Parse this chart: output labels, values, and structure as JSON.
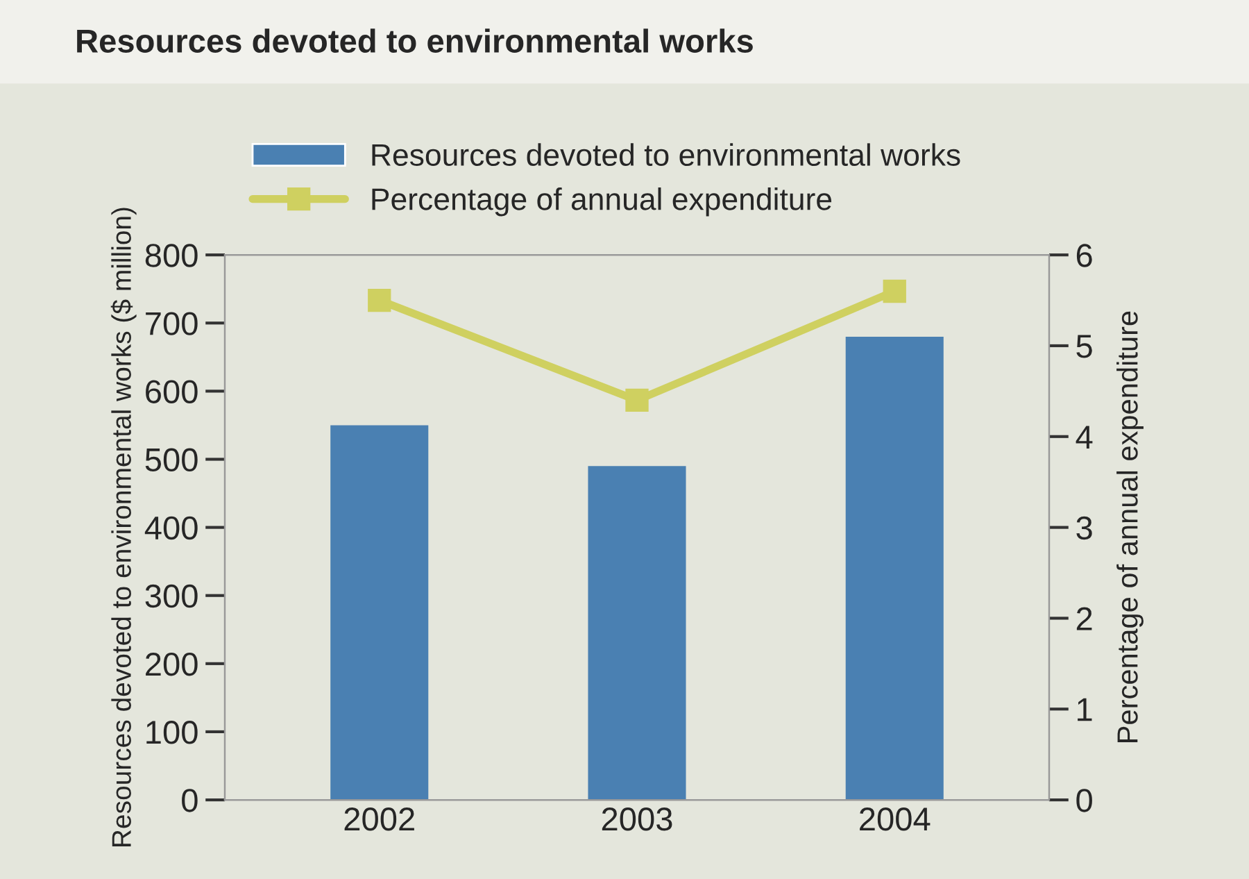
{
  "chart_data": {
    "type": "bar",
    "title": "Resources devoted to environmental works",
    "categories": [
      "2002",
      "2003",
      "2004"
    ],
    "series": [
      {
        "name": "Resources devoted to environmental works",
        "color": "#4a80b2",
        "values": [
          550,
          490,
          680
        ]
      },
      {
        "name": "Percentage of annual expenditure",
        "type": "line",
        "axis": "y2",
        "color": "#cfd060",
        "marker": "square",
        "values": [
          5.5,
          4.4,
          5.6
        ]
      }
    ],
    "ylabel": "Resources devoted to environmental works ($ million)",
    "y2label": "Percentage of annual expenditure",
    "ylim": [
      0,
      800
    ],
    "yticks": [
      0,
      100,
      200,
      300,
      400,
      500,
      600,
      700,
      800
    ],
    "y2lim": [
      0,
      6
    ],
    "y2ticks": [
      0,
      1,
      2,
      3,
      4,
      5,
      6
    ],
    "grid": false,
    "legend": "top left"
  }
}
